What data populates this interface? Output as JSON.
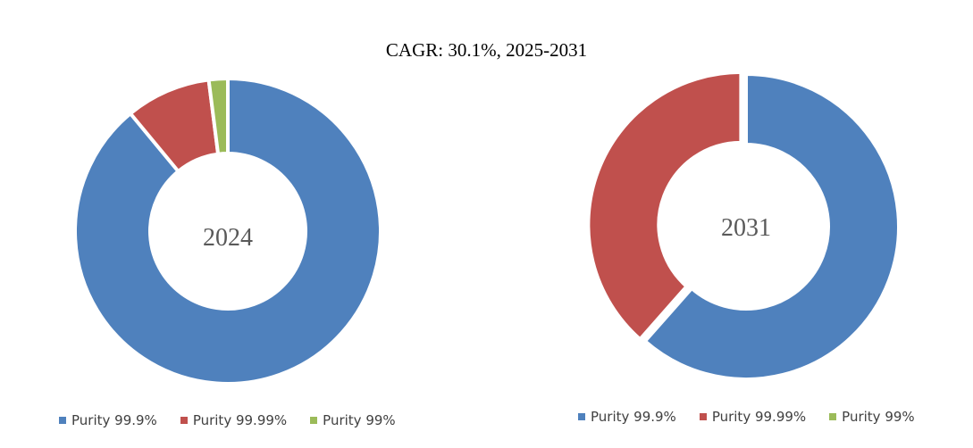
{
  "title": "CAGR:   30.1%, 2025-2031",
  "colors": {
    "purity_999": "#4F81BD",
    "purity_9999": "#C0504D",
    "purity_99": "#9BBB59"
  },
  "chart_data": [
    {
      "type": "pie",
      "center_label": "2024",
      "categories": [
        "Purity 99.9%",
        "Purity 99.99%",
        "Purity 99%"
      ],
      "values": [
        89,
        9,
        2
      ],
      "colors": [
        "#4F81BD",
        "#C0504D",
        "#9BBB59"
      ],
      "legend_position": "bottom"
    },
    {
      "type": "pie",
      "center_label": "2031",
      "categories": [
        "Purity 99.9%",
        "Purity 99.99%",
        "Purity 99%"
      ],
      "values": [
        61.5,
        38.5,
        0
      ],
      "colors": [
        "#4F81BD",
        "#C0504D",
        "#9BBB59"
      ],
      "legend_position": "bottom"
    }
  ]
}
